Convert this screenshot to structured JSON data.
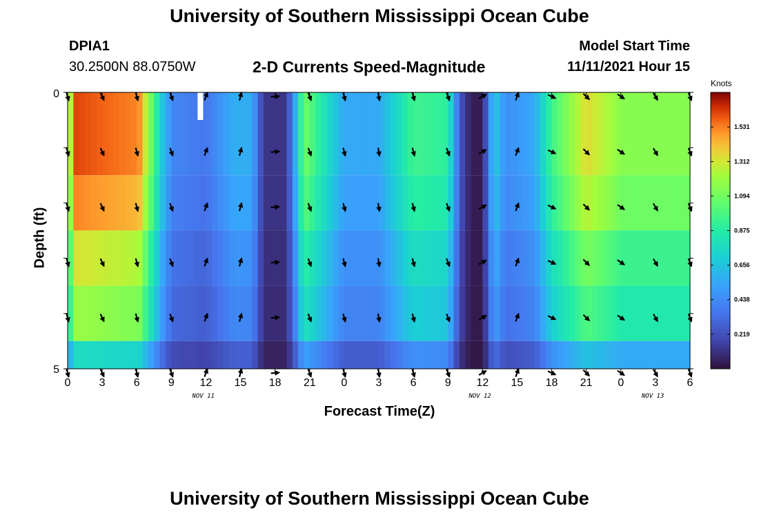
{
  "page": {
    "title": "University of Southern Mississippi Ocean Cube",
    "title_bottom": "University of Southern Mississippi Ocean Cube",
    "station_id": "DPIA1",
    "coords": "30.2500N  88.0750W",
    "subtitle": "2-D Currents Speed-Magnitude",
    "model_label": "Model Start Time",
    "model_time": "11/11/2021 Hour 15"
  },
  "chart_data": {
    "type": "heatmap",
    "title": "2-D Currents Speed-Magnitude",
    "xlabel": "Forecast Time(Z)",
    "ylabel": "Depth (ft)",
    "x_tick_labels": [
      "0",
      "3",
      "6",
      "9",
      "12",
      "15",
      "18",
      "21",
      "0",
      "3",
      "6",
      "9",
      "12",
      "15",
      "18",
      "21",
      "0",
      "3",
      "6"
    ],
    "date_labels": [
      {
        "label": "NOV 11",
        "at_tick": 4
      },
      {
        "label": "NOV 12",
        "at_tick": 12
      },
      {
        "label": "NOV 13",
        "at_tick": 17
      }
    ],
    "y_tick_labels": [
      "0",
      "5"
    ],
    "ylim": [
      0,
      5
    ],
    "colorbar": {
      "units": "Knots",
      "range": [
        0,
        1.75
      ],
      "tick_values": [
        0.219,
        0.438,
        0.656,
        0.875,
        1.094,
        1.312,
        1.531
      ],
      "tick_labels": [
        "0.219",
        "0.438",
        "0.656",
        "0.875",
        "1.094",
        "1.312",
        "1.531"
      ]
    },
    "time_steps": 18,
    "speed_profile_knots": [
      {
        "t": 0,
        "speed": 1.0
      },
      {
        "t": 0.6,
        "speed": 1.62
      },
      {
        "t": 6.2,
        "speed": 1.52
      },
      {
        "t": 8.2,
        "speed": 0.68
      },
      {
        "t": 9.0,
        "speed": 0.42
      },
      {
        "t": 12.0,
        "speed": 0.36
      },
      {
        "t": 14.5,
        "speed": 0.58
      },
      {
        "t": 16.0,
        "speed": 0.56
      },
      {
        "t": 17.0,
        "speed": 0.12
      },
      {
        "t": 19.0,
        "speed": 0.12
      },
      {
        "t": 19.8,
        "speed": 0.6
      },
      {
        "t": 20.5,
        "speed": 1.1
      },
      {
        "t": 23.0,
        "speed": 0.7
      },
      {
        "t": 24.0,
        "speed": 0.55
      },
      {
        "t": 27.0,
        "speed": 0.55
      },
      {
        "t": 30.0,
        "speed": 0.95
      },
      {
        "t": 33.0,
        "speed": 0.9
      },
      {
        "t": 34.0,
        "speed": 0.25
      },
      {
        "t": 35.0,
        "speed": 0.04
      },
      {
        "t": 36.0,
        "speed": 0.04
      },
      {
        "t": 37.0,
        "speed": 0.7
      },
      {
        "t": 38.0,
        "speed": 0.45
      },
      {
        "t": 40.5,
        "speed": 0.55
      },
      {
        "t": 42.0,
        "speed": 0.95
      },
      {
        "t": 45.0,
        "speed": 1.35
      },
      {
        "t": 47.5,
        "speed": 1.2
      },
      {
        "t": 48.0,
        "speed": 1.15
      }
    ],
    "depth_factors": [
      1.0,
      1.0,
      0.94,
      0.82,
      0.74,
      0.48
    ],
    "vector_times": [
      0,
      3,
      6,
      9,
      12,
      15,
      18,
      21,
      24,
      27,
      30,
      33,
      36,
      39,
      42,
      45,
      48,
      51,
      54
    ],
    "vector_depth_rows": [
      0,
      1,
      2,
      3,
      4,
      5
    ],
    "vector_directions_deg": [
      165,
      155,
      165,
      160,
      20,
      15,
      85,
      160,
      165,
      170,
      165,
      160,
      60,
      20,
      115,
      135,
      125,
      150,
      160
    ],
    "missing_cells": [
      {
        "t": 12,
        "depth_row": 0
      }
    ]
  }
}
